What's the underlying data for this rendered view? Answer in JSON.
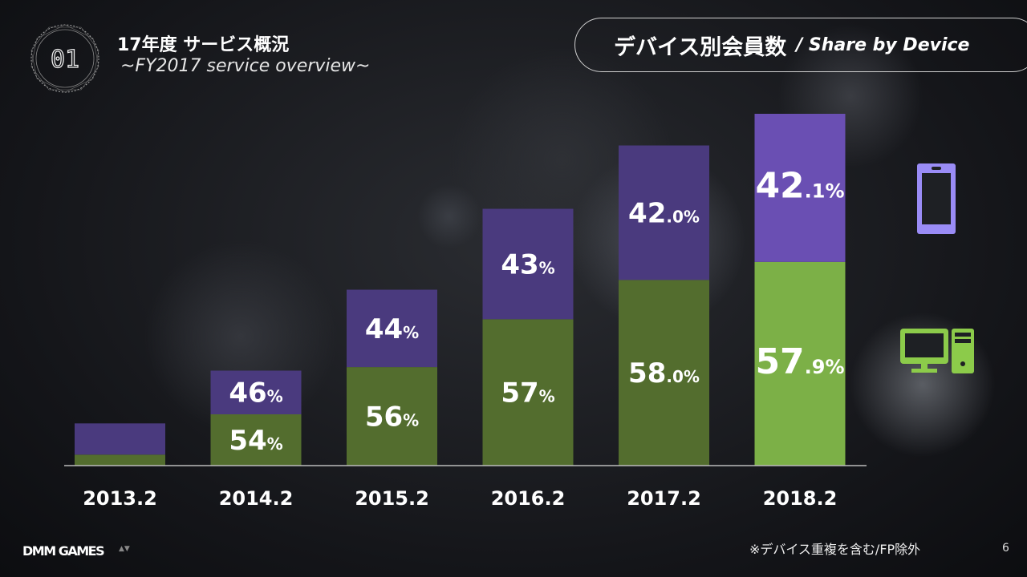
{
  "header": {
    "badge_number": "01",
    "title_jp": "17年度 サービス概況",
    "title_en": "~FY2017 service overview~"
  },
  "slide_title": {
    "jp": "デバイス別会員数",
    "en": "/ Share by Device"
  },
  "footer": {
    "logo": "DMM GAMES",
    "note": "※デバイス重複を含む/FP除外",
    "page": "6"
  },
  "colors": {
    "smartphone": "#4a3a7e",
    "smartphone_latest": "#6a4fb3",
    "pc": "#536d2e",
    "pc_latest": "#7cb047",
    "smartphone_icon": "#9a8cf6",
    "pc_icon": "#8ccb4a"
  },
  "chart_data": {
    "type": "bar",
    "stacked": true,
    "title": "デバイス別会員数 / Share by Device",
    "categories": [
      "2013.2",
      "2014.2",
      "2015.2",
      "2016.2",
      "2017.2",
      "2018.2"
    ],
    "relative_total_index": [
      12,
      27,
      50,
      73,
      91,
      100
    ],
    "series": [
      {
        "name": "PC",
        "icon": "desktop-pc-icon",
        "values": [
          26,
          54,
          56,
          57,
          58.0,
          57.9
        ],
        "labels": [
          null,
          [
            "54",
            "%"
          ],
          [
            "56",
            "%"
          ],
          [
            "57",
            "%"
          ],
          [
            "58",
            ".0%"
          ],
          [
            "57",
            ".9%"
          ]
        ]
      },
      {
        "name": "Smartphone",
        "icon": "smartphone-icon",
        "values": [
          74,
          46,
          44,
          43,
          42.0,
          42.1
        ],
        "labels": [
          null,
          [
            "46",
            "%"
          ],
          [
            "44",
            "%"
          ],
          [
            "43",
            "%"
          ],
          [
            "42",
            ".0%"
          ],
          [
            "42",
            ".1%"
          ]
        ]
      }
    ],
    "xlabel": "",
    "ylabel": "",
    "grid": false,
    "legend": "right"
  }
}
